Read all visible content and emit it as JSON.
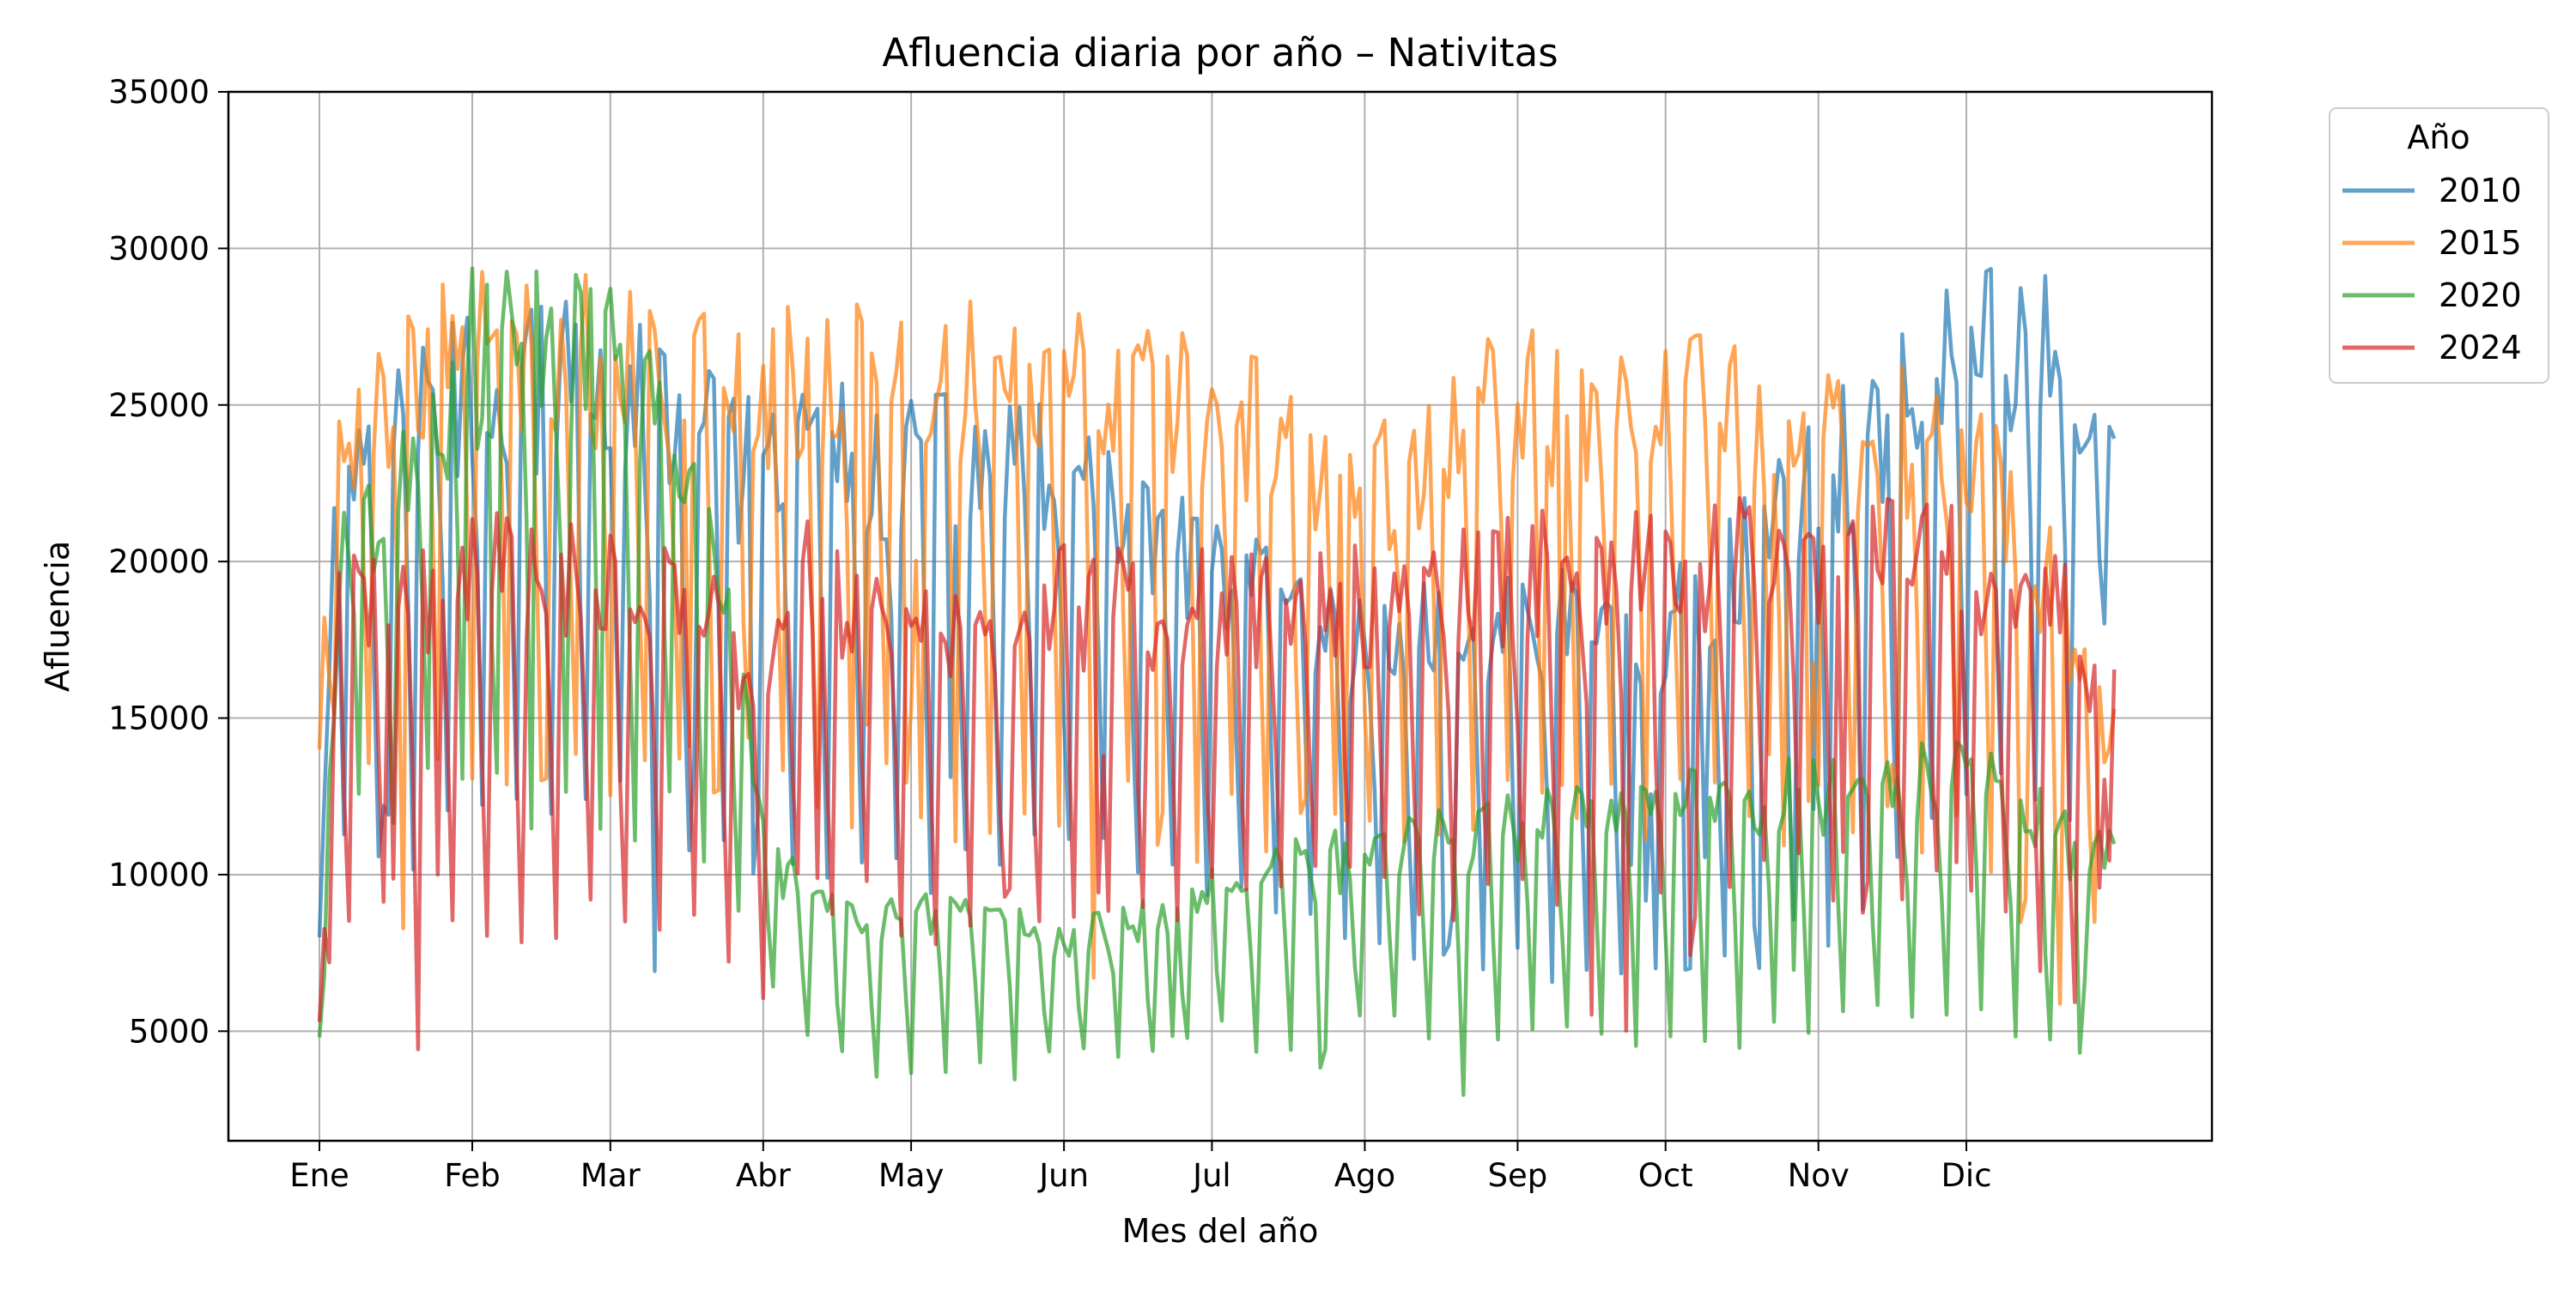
{
  "chart_data": {
    "type": "line",
    "title": "Afluencia diaria por año – Nativitas",
    "xlabel": "Mes del año",
    "ylabel": "Afluencia",
    "x_unit": "day_of_year",
    "xlim": [
      1,
      366
    ],
    "ylim": [
      1500,
      35000
    ],
    "y_ticks": [
      5000,
      10000,
      15000,
      20000,
      25000,
      30000,
      35000
    ],
    "x_ticks": [
      {
        "day": 1,
        "label": "Ene"
      },
      {
        "day": 32,
        "label": "Feb"
      },
      {
        "day": 60,
        "label": "Mar"
      },
      {
        "day": 91,
        "label": "Abr"
      },
      {
        "day": 121,
        "label": "May"
      },
      {
        "day": 152,
        "label": "Jun"
      },
      {
        "day": 182,
        "label": "Jul"
      },
      {
        "day": 213,
        "label": "Ago"
      },
      {
        "day": 244,
        "label": "Sep"
      },
      {
        "day": 274,
        "label": "Oct"
      },
      {
        "day": 305,
        "label": "Nov"
      },
      {
        "day": 335,
        "label": "Dic"
      }
    ],
    "grid": true,
    "legend": {
      "title": "Año",
      "placement": "outside-top-right"
    },
    "series": [
      {
        "name": "2010",
        "color": "#1f77b4",
        "profile": [
          {
            "day": 1,
            "weekday": 8000,
            "weekend": 8000
          },
          {
            "day": 4,
            "weekday": 23500,
            "weekend": 10500
          },
          {
            "day": 32,
            "weekday": 25500,
            "weekend": 11500
          },
          {
            "day": 60,
            "weekday": 25500,
            "weekend": 12000
          },
          {
            "day": 91,
            "weekday": 22500,
            "weekend": 11000
          },
          {
            "day": 100,
            "weekday": 23500,
            "weekend": 10500
          },
          {
            "day": 152,
            "weekday": 22500,
            "weekend": 10500
          },
          {
            "day": 182,
            "weekday": 19500,
            "weekend": 9000
          },
          {
            "day": 213,
            "weekday": 17000,
            "weekend": 7500
          },
          {
            "day": 244,
            "weekday": 18000,
            "weekend": 7000
          },
          {
            "day": 274,
            "weekday": 17500,
            "weekend": 6500
          },
          {
            "day": 305,
            "weekday": 22500,
            "weekend": 8000
          },
          {
            "day": 335,
            "weekday": 27000,
            "weekend": 12000
          },
          {
            "day": 355,
            "weekday": 26500,
            "weekend": 12500
          },
          {
            "day": 365,
            "weekday": 22000,
            "weekend": 17700
          }
        ]
      },
      {
        "name": "2015",
        "color": "#ff7f0e",
        "profile": [
          {
            "day": 1,
            "weekday": 14000,
            "weekend": 14000
          },
          {
            "day": 5,
            "weekday": 24500,
            "weekend": 15000
          },
          {
            "day": 32,
            "weekday": 26500,
            "weekend": 14500
          },
          {
            "day": 60,
            "weekday": 26500,
            "weekend": 14000
          },
          {
            "day": 91,
            "weekday": 25500,
            "weekend": 13000
          },
          {
            "day": 121,
            "weekday": 26000,
            "weekend": 12500
          },
          {
            "day": 152,
            "weekday": 25500,
            "weekend": 12000
          },
          {
            "day": 182,
            "weekday": 24500,
            "weekend": 11500
          },
          {
            "day": 213,
            "weekday": 22500,
            "weekend": 11000
          },
          {
            "day": 244,
            "weekday": 25000,
            "weekend": 12000
          },
          {
            "day": 274,
            "weekday": 25500,
            "weekend": 12500
          },
          {
            "day": 305,
            "weekday": 24000,
            "weekend": 12000
          },
          {
            "day": 335,
            "weekday": 23500,
            "weekend": 11500
          },
          {
            "day": 356,
            "weekday": 18000,
            "weekend": 6000
          },
          {
            "day": 365,
            "weekday": 14000,
            "weekend": 10000
          }
        ]
      },
      {
        "name": "2020",
        "color": "#2ca02c",
        "profile": [
          {
            "day": 1,
            "weekday": 4800,
            "weekend": 4800
          },
          {
            "day": 5,
            "weekday": 20500,
            "weekend": 12000
          },
          {
            "day": 32,
            "weekday": 26500,
            "weekend": 12500
          },
          {
            "day": 60,
            "weekday": 26500,
            "weekend": 12000
          },
          {
            "day": 80,
            "weekday": 21000,
            "weekend": 11500
          },
          {
            "day": 91,
            "weekday": 11500,
            "weekend": 6500
          },
          {
            "day": 100,
            "weekday": 9000,
            "weekend": 4500
          },
          {
            "day": 121,
            "weekday": 8500,
            "weekend": 3500
          },
          {
            "day": 152,
            "weekday": 8000,
            "weekend": 4000
          },
          {
            "day": 182,
            "weekday": 9500,
            "weekend": 4800
          },
          {
            "day": 213,
            "weekday": 10500,
            "weekend": 5000
          },
          {
            "day": 244,
            "weekday": 11500,
            "weekend": 5200
          },
          {
            "day": 274,
            "weekday": 12000,
            "weekend": 5000
          },
          {
            "day": 305,
            "weekday": 12500,
            "weekend": 5000
          },
          {
            "day": 335,
            "weekday": 13000,
            "weekend": 6000
          },
          {
            "day": 356,
            "weekday": 11000,
            "weekend": 4200
          },
          {
            "day": 365,
            "weekday": 10500,
            "weekend": 9500
          }
        ]
      },
      {
        "name": "2024",
        "color": "#d62728",
        "profile": [
          {
            "day": 1,
            "weekday": 5300,
            "weekend": 5300
          },
          {
            "day": 5,
            "weekday": 18500,
            "weekend": 9000
          },
          {
            "day": 32,
            "weekday": 19500,
            "weekend": 8500
          },
          {
            "day": 60,
            "weekday": 19800,
            "weekend": 9000
          },
          {
            "day": 80,
            "weekday": 18500,
            "weekend": 8000
          },
          {
            "day": 91,
            "weekday": 14000,
            "weekend": 6000
          },
          {
            "day": 96,
            "weekday": 19500,
            "weekend": 9500
          },
          {
            "day": 121,
            "weekday": 17500,
            "weekend": 8500
          },
          {
            "day": 152,
            "weekday": 18500,
            "weekend": 8500
          },
          {
            "day": 182,
            "weekday": 18500,
            "weekend": 9000
          },
          {
            "day": 213,
            "weekday": 18500,
            "weekend": 9500
          },
          {
            "day": 244,
            "weekday": 19500,
            "weekend": 9000
          },
          {
            "day": 274,
            "weekday": 19800,
            "weekend": 9500
          },
          {
            "day": 305,
            "weekday": 20000,
            "weekend": 10000
          },
          {
            "day": 335,
            "weekday": 20000,
            "weekend": 10000
          },
          {
            "day": 356,
            "weekday": 18000,
            "weekend": 5000
          },
          {
            "day": 365,
            "weekday": 15000,
            "weekend": 11500
          }
        ]
      }
    ]
  }
}
